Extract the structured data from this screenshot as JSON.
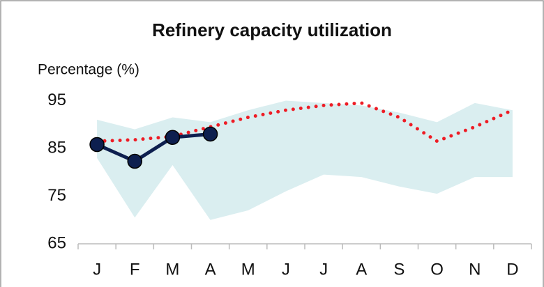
{
  "chart_data": {
    "type": "line",
    "title": "Refinery capacity utilization",
    "y_label": "Percentage (%)",
    "categories": [
      "J",
      "F",
      "M",
      "A",
      "M",
      "J",
      "J",
      "A",
      "S",
      "O",
      "N",
      "D"
    ],
    "ylim": [
      65,
      97
    ],
    "yticks": [
      65,
      75,
      85,
      95
    ],
    "range": {
      "color": "#daeef0",
      "upper": [
        91,
        89,
        91.5,
        90.5,
        93,
        95,
        94.5,
        94,
        92.5,
        90.5,
        94.5,
        93
      ],
      "lower": [
        83,
        70.5,
        81.5,
        70,
        72,
        76,
        79.5,
        79,
        77,
        75.5,
        79,
        79
      ]
    },
    "series": [
      {
        "color": "#ee1c25",
        "style": "dotted",
        "values": [
          86.5,
          86.8,
          87.5,
          89.5,
          91.5,
          93,
          94,
          94.5,
          91.5,
          86.5,
          89.5,
          93
        ]
      },
      {
        "color": "#0d1f4f",
        "style": "solid",
        "markers": true,
        "values": [
          85.8,
          82.3,
          87.3,
          88,
          null,
          null,
          null,
          null,
          null,
          null,
          null,
          null
        ]
      }
    ]
  }
}
